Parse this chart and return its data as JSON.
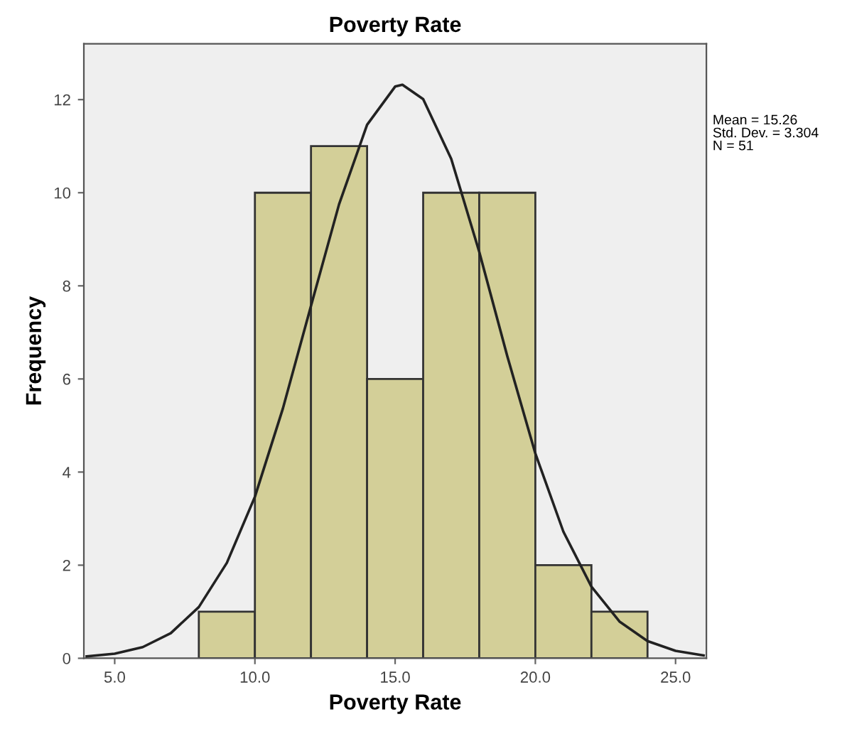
{
  "chart_data": {
    "type": "histogram",
    "title": "Poverty Rate",
    "xlabel": "Poverty Rate",
    "ylabel": "Frequency",
    "bins": [
      8,
      10,
      12,
      14,
      16,
      18,
      20,
      22,
      24
    ],
    "values": [
      1,
      10,
      11,
      6,
      10,
      10,
      2,
      1
    ],
    "color": "#d3cf98",
    "series": [
      {
        "type": "line",
        "color": "#222222",
        "x": [
          4,
          5,
          6,
          7,
          8,
          9,
          10,
          11,
          12,
          13,
          14,
          15,
          15.26,
          16,
          17,
          18,
          19,
          20,
          21,
          22,
          23,
          24,
          25,
          26
        ],
        "values": [
          0.04,
          0.1,
          0.24,
          0.54,
          1.1,
          2.05,
          3.47,
          5.37,
          7.57,
          9.75,
          11.46,
          12.28,
          12.32,
          12.01,
          10.73,
          8.73,
          6.49,
          4.4,
          2.72,
          1.54,
          0.79,
          0.37,
          0.16,
          0.06
        ]
      }
    ],
    "annotations": [
      "Mean = 15.26\nStd. Dev. = 3.304\nN = 51"
    ],
    "xlim": [
      3.9,
      26.1
    ],
    "ylim": [
      0,
      13.2
    ],
    "xticks": [
      {
        "value": 5,
        "label": "5.0"
      },
      {
        "value": 10,
        "label": "10.0"
      },
      {
        "value": 15,
        "label": "15.0"
      },
      {
        "value": 20,
        "label": "20.0"
      },
      {
        "value": 25,
        "label": "25.0"
      }
    ],
    "yticks": [
      0,
      2,
      4,
      6,
      8,
      10,
      12
    ],
    "grid": false,
    "legend": false
  }
}
